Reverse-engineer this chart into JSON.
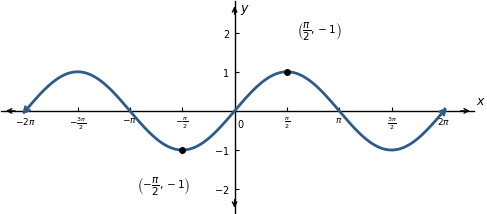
{
  "xlim": [
    -7.0,
    7.2
  ],
  "ylim": [
    -2.6,
    2.8
  ],
  "line_color": "#2E5B8A",
  "line_width": 2.0,
  "point1_x": 1.5707963267948966,
  "point1_y": 1.0,
  "point2_x": -1.5707963267948966,
  "point2_y": -1.0,
  "xticks": [
    -6.283185307179586,
    -4.71238898038469,
    -3.141592653589793,
    -1.5707963267948966,
    1.5707963267948966,
    3.141592653589793,
    4.71238898038469,
    6.283185307179586
  ],
  "yticks": [
    -2,
    -1,
    1,
    2
  ],
  "figsize": [
    4.87,
    2.14
  ],
  "dpi": 100
}
